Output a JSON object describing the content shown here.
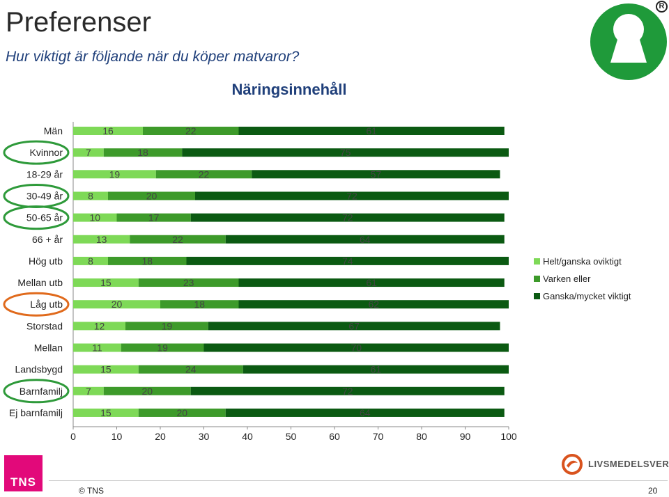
{
  "header": {
    "title": "Preferenser",
    "subtitle": "Hur viktigt är följande när du köper matvaror?"
  },
  "chart_data": {
    "type": "bar",
    "orientation": "horizontal",
    "stacked": true,
    "title": "Näringsinnehåll",
    "categories": [
      "Män",
      "Kvinnor",
      "18-29 år",
      "30-49 år",
      "50-65 år",
      "66 + år",
      "Hög utb",
      "Mellan utb",
      "Låg utb",
      "Storstad",
      "Mellan",
      "Landsbygd",
      "Barnfamilj",
      "Ej barnfamilj"
    ],
    "series": [
      {
        "name": "Helt/ganska oviktigt",
        "color": "#7ed957",
        "values": [
          16,
          7,
          19,
          8,
          10,
          13,
          8,
          15,
          20,
          12,
          11,
          15,
          7,
          15
        ]
      },
      {
        "name": "Varken eller",
        "color": "#3d9a2a",
        "values": [
          22,
          18,
          22,
          20,
          17,
          22,
          18,
          23,
          18,
          19,
          19,
          24,
          20,
          20
        ]
      },
      {
        "name": "Ganska/mycket viktigt",
        "color": "#0b5a12",
        "values": [
          61,
          75,
          57,
          72,
          72,
          64,
          74,
          61,
          62,
          67,
          70,
          61,
          72,
          64
        ]
      }
    ],
    "xlim": [
      0,
      100
    ],
    "xticks": [
      0,
      10,
      20,
      30,
      40,
      50,
      60,
      70,
      80,
      90,
      100
    ],
    "legend_position": "right",
    "highlight_circles": [
      {
        "category": "Kvinnor",
        "color": "#2e9a3a"
      },
      {
        "category": "30-49 år",
        "color": "#2e9a3a"
      },
      {
        "category": "50-65 år",
        "color": "#2e9a3a"
      },
      {
        "category": "Låg utb",
        "color": "#e06a1c"
      },
      {
        "category": "Barnfamilj",
        "color": "#2e9a3a"
      }
    ]
  },
  "footer": {
    "brand": "TNS",
    "copyright": "© TNS",
    "partner": "LIVSMEDELSVERKET",
    "page_number": "20"
  }
}
